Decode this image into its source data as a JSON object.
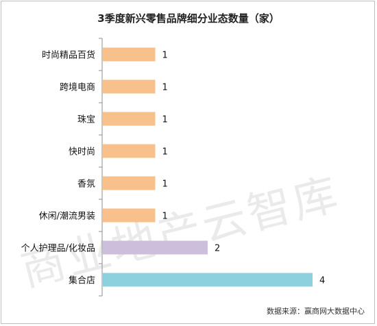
{
  "chart_data": {
    "type": "bar",
    "orientation": "horizontal",
    "title": "3季度新兴零售品牌细分业态数量（家）",
    "categories": [
      "时尚精品百货",
      "跨境电商",
      "珠宝",
      "快时尚",
      "香氛",
      "休闲/潮流男装",
      "个人护理品/化妆品",
      "集合店"
    ],
    "values": [
      1,
      1,
      1,
      1,
      1,
      1,
      2,
      4
    ],
    "bar_colors": [
      "#f8c08a",
      "#f8c08a",
      "#f8c08a",
      "#f8c08a",
      "#f8c08a",
      "#f8c08a",
      "#cdbfdc",
      "#8ed1de"
    ],
    "xlim": [
      0,
      4
    ],
    "data_labels": true,
    "grid": false,
    "legend": "none"
  },
  "watermark": "商业地产云智库",
  "source": "数据来源：赢商网大数据中心"
}
